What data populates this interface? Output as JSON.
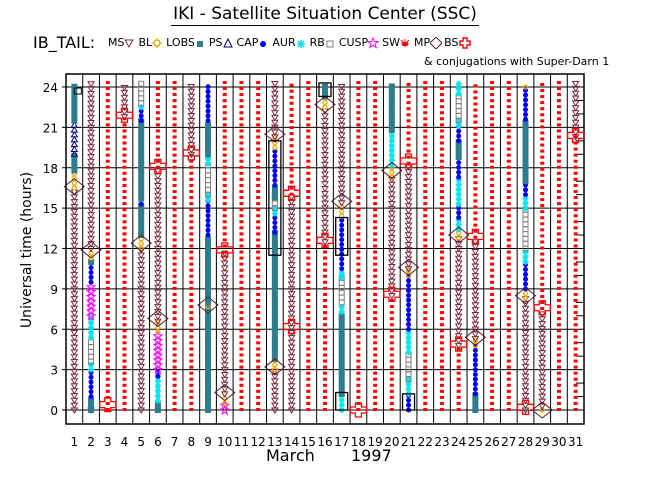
{
  "header": {
    "title": "IKI - Satellite Situation Center (SSC)",
    "satellite": "IB_TAIL:",
    "conjugation_note": "& conjugations with Super-Darn 1"
  },
  "legend": [
    {
      "key": "MS",
      "label": "MS",
      "icon": "triangle-down-icon",
      "color": "#7a2a3a"
    },
    {
      "key": "BL",
      "label": "BL",
      "icon": "sun-icon",
      "color": "#f0a800"
    },
    {
      "key": "LOBS",
      "label": "LOBS",
      "icon": "square-filled-icon",
      "color": "#2e7d8c"
    },
    {
      "key": "PS",
      "label": "PS",
      "icon": "triangle-up-icon",
      "color": "#000080"
    },
    {
      "key": "CAP",
      "label": "CAP",
      "icon": "dot-icon",
      "color": "#0000ff"
    },
    {
      "key": "AUR",
      "label": "AUR",
      "icon": "asterisk-icon",
      "color": "#00e5ee"
    },
    {
      "key": "RB",
      "label": "RB",
      "icon": "square-open-icon",
      "color": "#808080"
    },
    {
      "key": "CUSP",
      "label": "CUSP",
      "icon": "star-icon",
      "color": "#ff00ff"
    },
    {
      "key": "SW",
      "label": "SW",
      "icon": "bug-icon",
      "color": "#ff0000"
    },
    {
      "key": "MP",
      "label": "MP",
      "icon": "diamond-icon",
      "color": "#5a1a2a"
    },
    {
      "key": "BS",
      "label": "BS",
      "icon": "cross-icon",
      "color": "#ff0000"
    }
  ],
  "chart_data": {
    "type": "timeline",
    "title": "IKI - Satellite Situation Center (SSC)",
    "xlabel": "March",
    "xlabel2": "1997",
    "ylabel": "Universal time (hours)",
    "xlim": [
      1,
      31
    ],
    "ylim": [
      0,
      24
    ],
    "x_ticks": [
      "1",
      "2",
      "3",
      "4",
      "5",
      "6",
      "7",
      "8",
      "9",
      "10",
      "11",
      "12",
      "13",
      "14",
      "15",
      "16",
      "17",
      "18",
      "19",
      "20",
      "21",
      "22",
      "23",
      "24",
      "25",
      "26",
      "27",
      "28",
      "29",
      "30",
      "31"
    ],
    "y_ticks": [
      "0",
      "3",
      "6",
      "9",
      "12",
      "15",
      "18",
      "21",
      "24"
    ],
    "grid": true,
    "region_colors": {
      "MS": "#7a2a3a",
      "MSH": "#7a2a3a",
      "LOBS": "#2e7d8c",
      "PS": "#000080",
      "CAP": "#0000ff",
      "AUR": "#00e5ee",
      "RB": "#808080",
      "CUSP": "#ff00ff",
      "SW": "#ff0000",
      "BL": "#f0a800"
    },
    "days": [
      {
        "day": 1,
        "segments": [
          [
            "MS",
            0,
            16.5
          ],
          [
            "BL",
            16.5,
            17.8
          ],
          [
            "LOBS",
            17.8,
            19
          ],
          [
            "PS",
            19,
            21.5
          ],
          [
            "LOBS",
            21.5,
            24.3
          ]
        ],
        "bs": [
          16.6
        ],
        "mp": []
      },
      {
        "day": 2,
        "segments": [
          [
            "MS",
            0,
            0.3
          ],
          [
            "LOBS",
            0,
            1
          ],
          [
            "CAP",
            1,
            3
          ],
          [
            "AUR",
            3,
            3.6
          ],
          [
            "RB",
            3.6,
            5.4
          ],
          [
            "AUR",
            5.4,
            7
          ],
          [
            "CUSP",
            7,
            9.5
          ],
          [
            "CAP",
            9.5,
            11
          ],
          [
            "LOBS",
            11,
            11.3
          ],
          [
            "BL",
            11.3,
            12
          ],
          [
            "MS",
            12,
            24.3
          ]
        ],
        "bs": [
          11.9
        ],
        "mp": []
      },
      {
        "day": 3,
        "segments": [
          [
            "SW",
            0,
            24.3
          ]
        ],
        "bs": [],
        "mp": [
          0.4
        ]
      },
      {
        "day": 4,
        "segments": [
          [
            "SW",
            0,
            21.8
          ],
          [
            "MS",
            21.8,
            24.3
          ]
        ],
        "bs": [],
        "mp": [
          21.9
        ]
      },
      {
        "day": 5,
        "segments": [
          [
            "MS",
            0,
            12
          ],
          [
            "BL",
            12,
            13
          ],
          [
            "LOBS",
            13,
            15.3
          ],
          [
            "CAP",
            15.3,
            15.7
          ],
          [
            "LOBS",
            15.7,
            21.5
          ],
          [
            "CAP",
            21.5,
            22.5
          ],
          [
            "AUR",
            22.5,
            22.8
          ],
          [
            "RB",
            22.8,
            24.3
          ]
        ],
        "bs": [
          12.4
        ],
        "mp": []
      },
      {
        "day": 6,
        "segments": [
          [
            "LOBS",
            0,
            0.7
          ],
          [
            "AUR",
            0.7,
            2.5
          ],
          [
            "CAP",
            2.5,
            3
          ],
          [
            "CUSP",
            3,
            5.8
          ],
          [
            "BL",
            5.8,
            6.6
          ],
          [
            "MS",
            6.6,
            18
          ],
          [
            "SW",
            18,
            24.3
          ]
        ],
        "bs": [
          6.8
        ],
        "mp": [
          18.1
        ]
      },
      {
        "day": 7,
        "segments": [
          [
            "SW",
            0,
            24.3
          ]
        ],
        "bs": [],
        "mp": []
      },
      {
        "day": 8,
        "segments": [
          [
            "SW",
            0,
            19
          ],
          [
            "MS",
            19,
            24.3
          ]
        ],
        "bs": [],
        "mp": [
          19.1
        ]
      },
      {
        "day": 9,
        "segments": [
          [
            "LOBS",
            0,
            7.7
          ],
          [
            "BL",
            7.7,
            8
          ],
          [
            "LOBS",
            8,
            13
          ],
          [
            "CAP",
            13,
            15.6
          ],
          [
            "AUR",
            15.6,
            16
          ],
          [
            "RB",
            16,
            18.3
          ],
          [
            "AUR",
            18.3,
            19
          ],
          [
            "LOBS",
            19,
            21.5
          ],
          [
            "CAP",
            21.5,
            24.3
          ]
        ],
        "bs": [
          7.8
        ],
        "mp": []
      },
      {
        "day": 10,
        "segments": [
          [
            "CUSP",
            0,
            0.5
          ],
          [
            "BL",
            0.5,
            1.2
          ],
          [
            "MS",
            1.2,
            11.7
          ],
          [
            "SW",
            11.7,
            24.3
          ]
        ],
        "bs": [
          1.3
        ],
        "mp": [
          11.9
        ]
      },
      {
        "day": 11,
        "segments": [
          [
            "SW",
            0,
            24.3
          ]
        ],
        "bs": [],
        "mp": []
      },
      {
        "day": 12,
        "segments": [
          [
            "SW",
            0,
            24.3
          ]
        ],
        "bs": [],
        "mp": []
      },
      {
        "day": 13,
        "segments": [
          [
            "MS",
            0,
            3
          ],
          [
            "BL",
            3,
            3.8
          ],
          [
            "LOBS",
            3.8,
            13.2
          ],
          [
            "CAP",
            13.2,
            14.6
          ],
          [
            "AUR",
            14.6,
            15
          ],
          [
            "RB",
            15,
            15.8
          ],
          [
            "LOBS",
            15.8,
            16.7
          ],
          [
            "CAP",
            16.7,
            19.5
          ],
          [
            "BL",
            19.5,
            20.3
          ],
          [
            "MS",
            20.3,
            24.3
          ]
        ],
        "bs": [
          3.2,
          20.5
        ],
        "mp": []
      },
      {
        "day": 14,
        "segments": [
          [
            "MS",
            0,
            16
          ],
          [
            "SW",
            16,
            24.3
          ]
        ],
        "bs": [],
        "mp": [
          6.2,
          16.1
        ]
      },
      {
        "day": 15,
        "segments": [
          [
            "SW",
            0,
            24.3
          ]
        ],
        "bs": [],
        "mp": []
      },
      {
        "day": 16,
        "segments": [
          [
            "SW",
            0,
            12.5
          ],
          [
            "MS",
            12.5,
            22.5
          ],
          [
            "BL",
            22.5,
            23.3
          ],
          [
            "LOBS",
            23.3,
            24.3
          ]
        ],
        "bs": [
          22.7
        ],
        "mp": [
          12.6
        ]
      },
      {
        "day": 17,
        "segments": [
          [
            "AUR",
            0,
            1.2
          ],
          [
            "LOBS",
            1.2,
            7.3
          ],
          [
            "AUR",
            7.3,
            8
          ],
          [
            "RB",
            8,
            9.8
          ],
          [
            "AUR",
            9.8,
            10.5
          ],
          [
            "CAP",
            10.5,
            14.4
          ],
          [
            "BL",
            14.4,
            15.4
          ],
          [
            "MS",
            15.4,
            24.3
          ]
        ],
        "bs": [
          15.5
        ],
        "mp": []
      },
      {
        "day": 18,
        "segments": [
          [
            "SW",
            0,
            24.3
          ]
        ],
        "bs": [],
        "mp": [
          0
        ]
      },
      {
        "day": 19,
        "segments": [
          [
            "SW",
            0,
            24.3
          ]
        ],
        "bs": [],
        "mp": []
      },
      {
        "day": 20,
        "segments": [
          [
            "SW",
            0,
            8.5
          ],
          [
            "MS",
            8.5,
            17.3
          ],
          [
            "BL",
            17.3,
            18.2
          ],
          [
            "AUR",
            18.2,
            20.8
          ],
          [
            "LOBS",
            20.8,
            24.3
          ]
        ],
        "bs": [
          17.8
        ],
        "mp": [
          8.6
        ]
      },
      {
        "day": 21,
        "segments": [
          [
            "CAP",
            0,
            1.2
          ],
          [
            "AUR",
            1.2,
            2.3
          ],
          [
            "RB",
            2.3,
            4.3
          ],
          [
            "AUR",
            4.3,
            6
          ],
          [
            "CAP",
            6,
            10
          ],
          [
            "BL",
            10,
            10.5
          ],
          [
            "MS",
            10.5,
            18.3
          ],
          [
            "SW",
            18.3,
            24.3
          ]
        ],
        "bs": [
          10.6
        ],
        "mp": [
          18.5
        ]
      },
      {
        "day": 22,
        "segments": [
          [
            "SW",
            0,
            24.3
          ]
        ],
        "bs": [],
        "mp": []
      },
      {
        "day": 23,
        "segments": [
          [
            "SW",
            0,
            24.3
          ]
        ],
        "bs": [],
        "mp": []
      },
      {
        "day": 24,
        "segments": [
          [
            "SW",
            0,
            4.8
          ],
          [
            "MS",
            4.8,
            12.8
          ],
          [
            "BL",
            12.8,
            13.4
          ],
          [
            "AUR",
            13.4,
            14.3
          ],
          [
            "CAP",
            14.3,
            15.3
          ],
          [
            "AUR",
            15.3,
            17.3
          ],
          [
            "CAP",
            17.3,
            18.8
          ],
          [
            "LOBS",
            18.8,
            20
          ],
          [
            "CAP",
            20,
            21.1
          ],
          [
            "AUR",
            21.1,
            21.5
          ],
          [
            "RB",
            21.5,
            23.5
          ],
          [
            "AUR",
            23.5,
            24.3
          ]
        ],
        "bs": [
          13
        ],
        "mp": [
          4.9
        ]
      },
      {
        "day": 25,
        "segments": [
          [
            "LOBS",
            0,
            1.2
          ],
          [
            "CAP",
            1.2,
            4.8
          ],
          [
            "BL",
            4.8,
            5.3
          ],
          [
            "MS",
            5.3,
            12.8
          ],
          [
            "SW",
            12.8,
            24.3
          ]
        ],
        "bs": [
          5.4
        ],
        "mp": [
          12.9
        ]
      },
      {
        "day": 26,
        "segments": [
          [
            "SW",
            0,
            24.3
          ]
        ],
        "bs": [],
        "mp": []
      },
      {
        "day": 27,
        "segments": [
          [
            "SW",
            0,
            24.3
          ]
        ],
        "bs": [],
        "mp": []
      },
      {
        "day": 28,
        "segments": [
          [
            "MS",
            0,
            8.3
          ],
          [
            "BL",
            8.3,
            9
          ],
          [
            "CAP",
            9,
            11
          ],
          [
            "AUR",
            11,
            12
          ],
          [
            "RB",
            12,
            15
          ],
          [
            "AUR",
            15,
            16
          ],
          [
            "CAP",
            16,
            17
          ],
          [
            "LOBS",
            17,
            21.6
          ],
          [
            "CAP",
            21.6,
            24
          ],
          [
            "BL",
            24,
            24.3
          ]
        ],
        "bs": [
          8.5
        ],
        "mp": [
          0.2
        ]
      },
      {
        "day": 29,
        "segments": [
          [
            "BL",
            0,
            0.3
          ],
          [
            "MS",
            0.3,
            7.5
          ],
          [
            "SW",
            7.5,
            24.3
          ]
        ],
        "bs": [
          0
        ],
        "mp": [
          7.6
        ]
      },
      {
        "day": 30,
        "segments": [
          [
            "SW",
            0,
            24.3
          ]
        ],
        "bs": [],
        "mp": []
      },
      {
        "day": 31,
        "segments": [
          [
            "SW",
            0,
            20.3
          ],
          [
            "MS",
            20.3,
            24.3
          ]
        ],
        "bs": [],
        "mp": [
          20.4
        ]
      }
    ],
    "boxes": [
      {
        "day": 13,
        "from": 11.5,
        "to": 20
      },
      {
        "day": 17,
        "from": 0,
        "to": 1.3
      },
      {
        "day": 17,
        "from": 11.5,
        "to": 14.3
      },
      {
        "day": 16,
        "from": 23.3,
        "to": 24.3
      },
      {
        "day": 21,
        "from": 0,
        "to": 1.2
      }
    ]
  }
}
